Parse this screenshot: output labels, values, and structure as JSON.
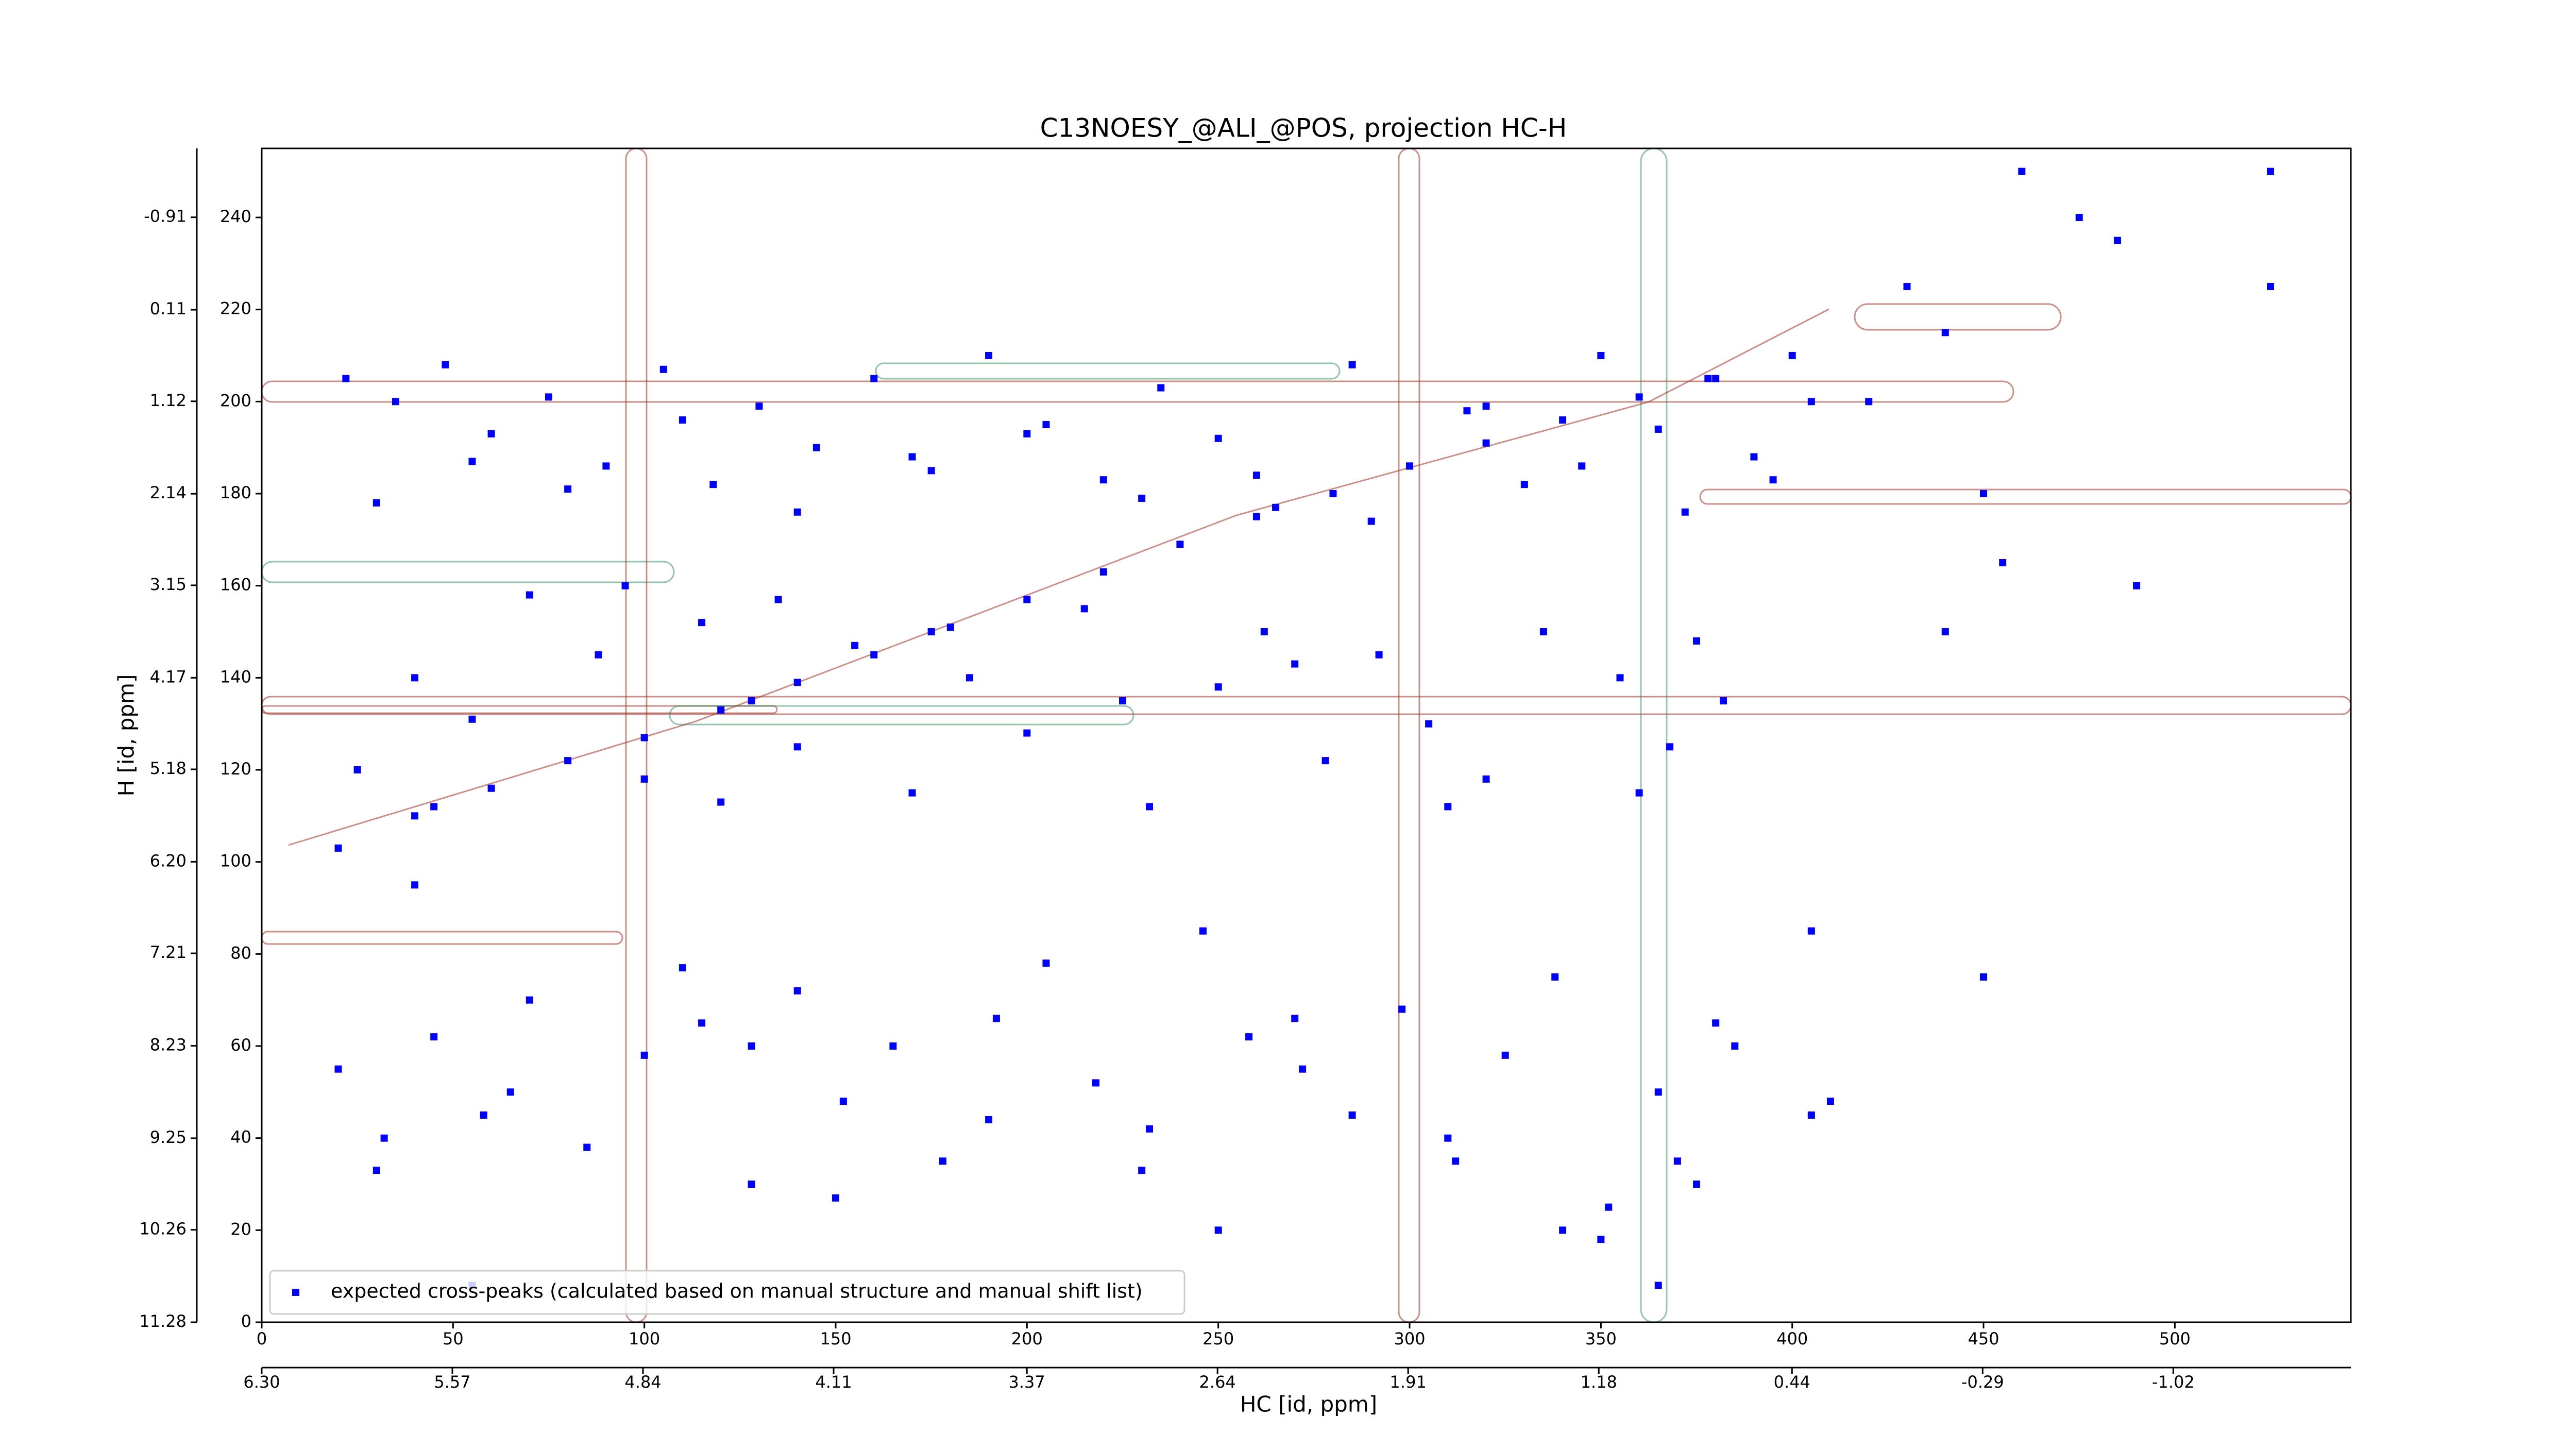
{
  "chart_data": {
    "type": "scatter",
    "title": "C13NOESY_@ALI_@POS, projection HC-H",
    "xlabel": "HC [id, ppm]",
    "ylabel": "H [id, ppm]",
    "xlim": [
      0,
      546
    ],
    "xticks": [
      0,
      50,
      100,
      150,
      200,
      250,
      300,
      350,
      400,
      450,
      500
    ],
    "x2lim": [
      6.3,
      -1.7
    ],
    "x2ticks": [
      {
        "value": 6.3,
        "label": "6.30"
      },
      5.57,
      4.84,
      4.11,
      3.37,
      2.64,
      1.91,
      1.18,
      0.44,
      -0.29,
      -1.02
    ],
    "ylim": [
      0,
      255
    ],
    "yticks": [
      0,
      20,
      40,
      60,
      80,
      100,
      120,
      140,
      160,
      180,
      200,
      220,
      240
    ],
    "y2lim": [
      11.28,
      -1.67
    ],
    "y2ticks": [
      11.28,
      10.26,
      9.25,
      8.23,
      7.21,
      {
        "value": 6.2,
        "label": "6.20"
      },
      5.18,
      4.17,
      3.15,
      2.14,
      1.12,
      0.11,
      -0.91
    ],
    "legend": "lower left",
    "series": [
      {
        "name": "expected cross-peaks (calculated based on manual structure and manual shift list)",
        "color": "#0000ff",
        "x": [
          20,
          40,
          60,
          80,
          100,
          120,
          140,
          160,
          180,
          200,
          220,
          240,
          260,
          280,
          300,
          320,
          340,
          360,
          380,
          400,
          22,
          35,
          48,
          60,
          75,
          90,
          105,
          118,
          130,
          145,
          160,
          175,
          190,
          205,
          220,
          235,
          250,
          265,
          285,
          300,
          315,
          330,
          350,
          365,
          378,
          390,
          405,
          30,
          55,
          80,
          110,
          140,
          170,
          200,
          230,
          260,
          290,
          320,
          345,
          372,
          395,
          25,
          40,
          55,
          70,
          88,
          100,
          115,
          128,
          140,
          155,
          170,
          185,
          200,
          215,
          232,
          250,
          262,
          278,
          292,
          305,
          320,
          335,
          355,
          368,
          382,
          45,
          95,
          135,
          175,
          225,
          270,
          310,
          360,
          375,
          120,
          20,
          32,
          45,
          58,
          70,
          85,
          100,
          115,
          128,
          140,
          152,
          165,
          178,
          192,
          205,
          218,
          232,
          246,
          258,
          272,
          285,
          298,
          312,
          325,
          338,
          352,
          365,
          375,
          385,
          405,
          30,
          65,
          110,
          150,
          190,
          230,
          270,
          310,
          350,
          370,
          380,
          405,
          420,
          430,
          440,
          450,
          460,
          485,
          490,
          525,
          440,
          455,
          475,
          450,
          525,
          40,
          55,
          128,
          250,
          340,
          365,
          410
        ],
        "y": [
          103,
          110,
          116,
          122,
          127,
          133,
          139,
          145,
          151,
          157,
          163,
          169,
          175,
          180,
          186,
          191,
          196,
          201,
          205,
          210,
          205,
          200,
          208,
          193,
          201,
          186,
          207,
          182,
          199,
          190,
          205,
          185,
          210,
          195,
          183,
          203,
          192,
          177,
          208,
          186,
          198,
          182,
          210,
          194,
          205,
          188,
          200,
          178,
          187,
          181,
          196,
          176,
          188,
          193,
          179,
          184,
          174,
          199,
          186,
          176,
          183,
          120,
          140,
          131,
          158,
          145,
          118,
          152,
          135,
          125,
          147,
          115,
          140,
          128,
          155,
          112,
          138,
          150,
          122,
          145,
          130,
          118,
          150,
          140,
          125,
          135,
          112,
          160,
          157,
          150,
          135,
          143,
          112,
          115,
          148,
          113,
          55,
          40,
          62,
          45,
          70,
          38,
          58,
          65,
          30,
          72,
          48,
          60,
          35,
          66,
          78,
          52,
          42,
          85,
          62,
          55,
          45,
          68,
          35,
          58,
          75,
          25,
          50,
          30,
          60,
          45,
          33,
          50,
          77,
          27,
          44,
          33,
          66,
          40,
          18,
          35,
          65,
          85,
          200,
          225,
          215,
          180,
          250,
          235,
          160,
          250,
          150,
          165,
          240,
          75,
          225,
          95,
          8,
          60,
          20,
          20,
          8,
          48
        ]
      }
    ]
  }
}
